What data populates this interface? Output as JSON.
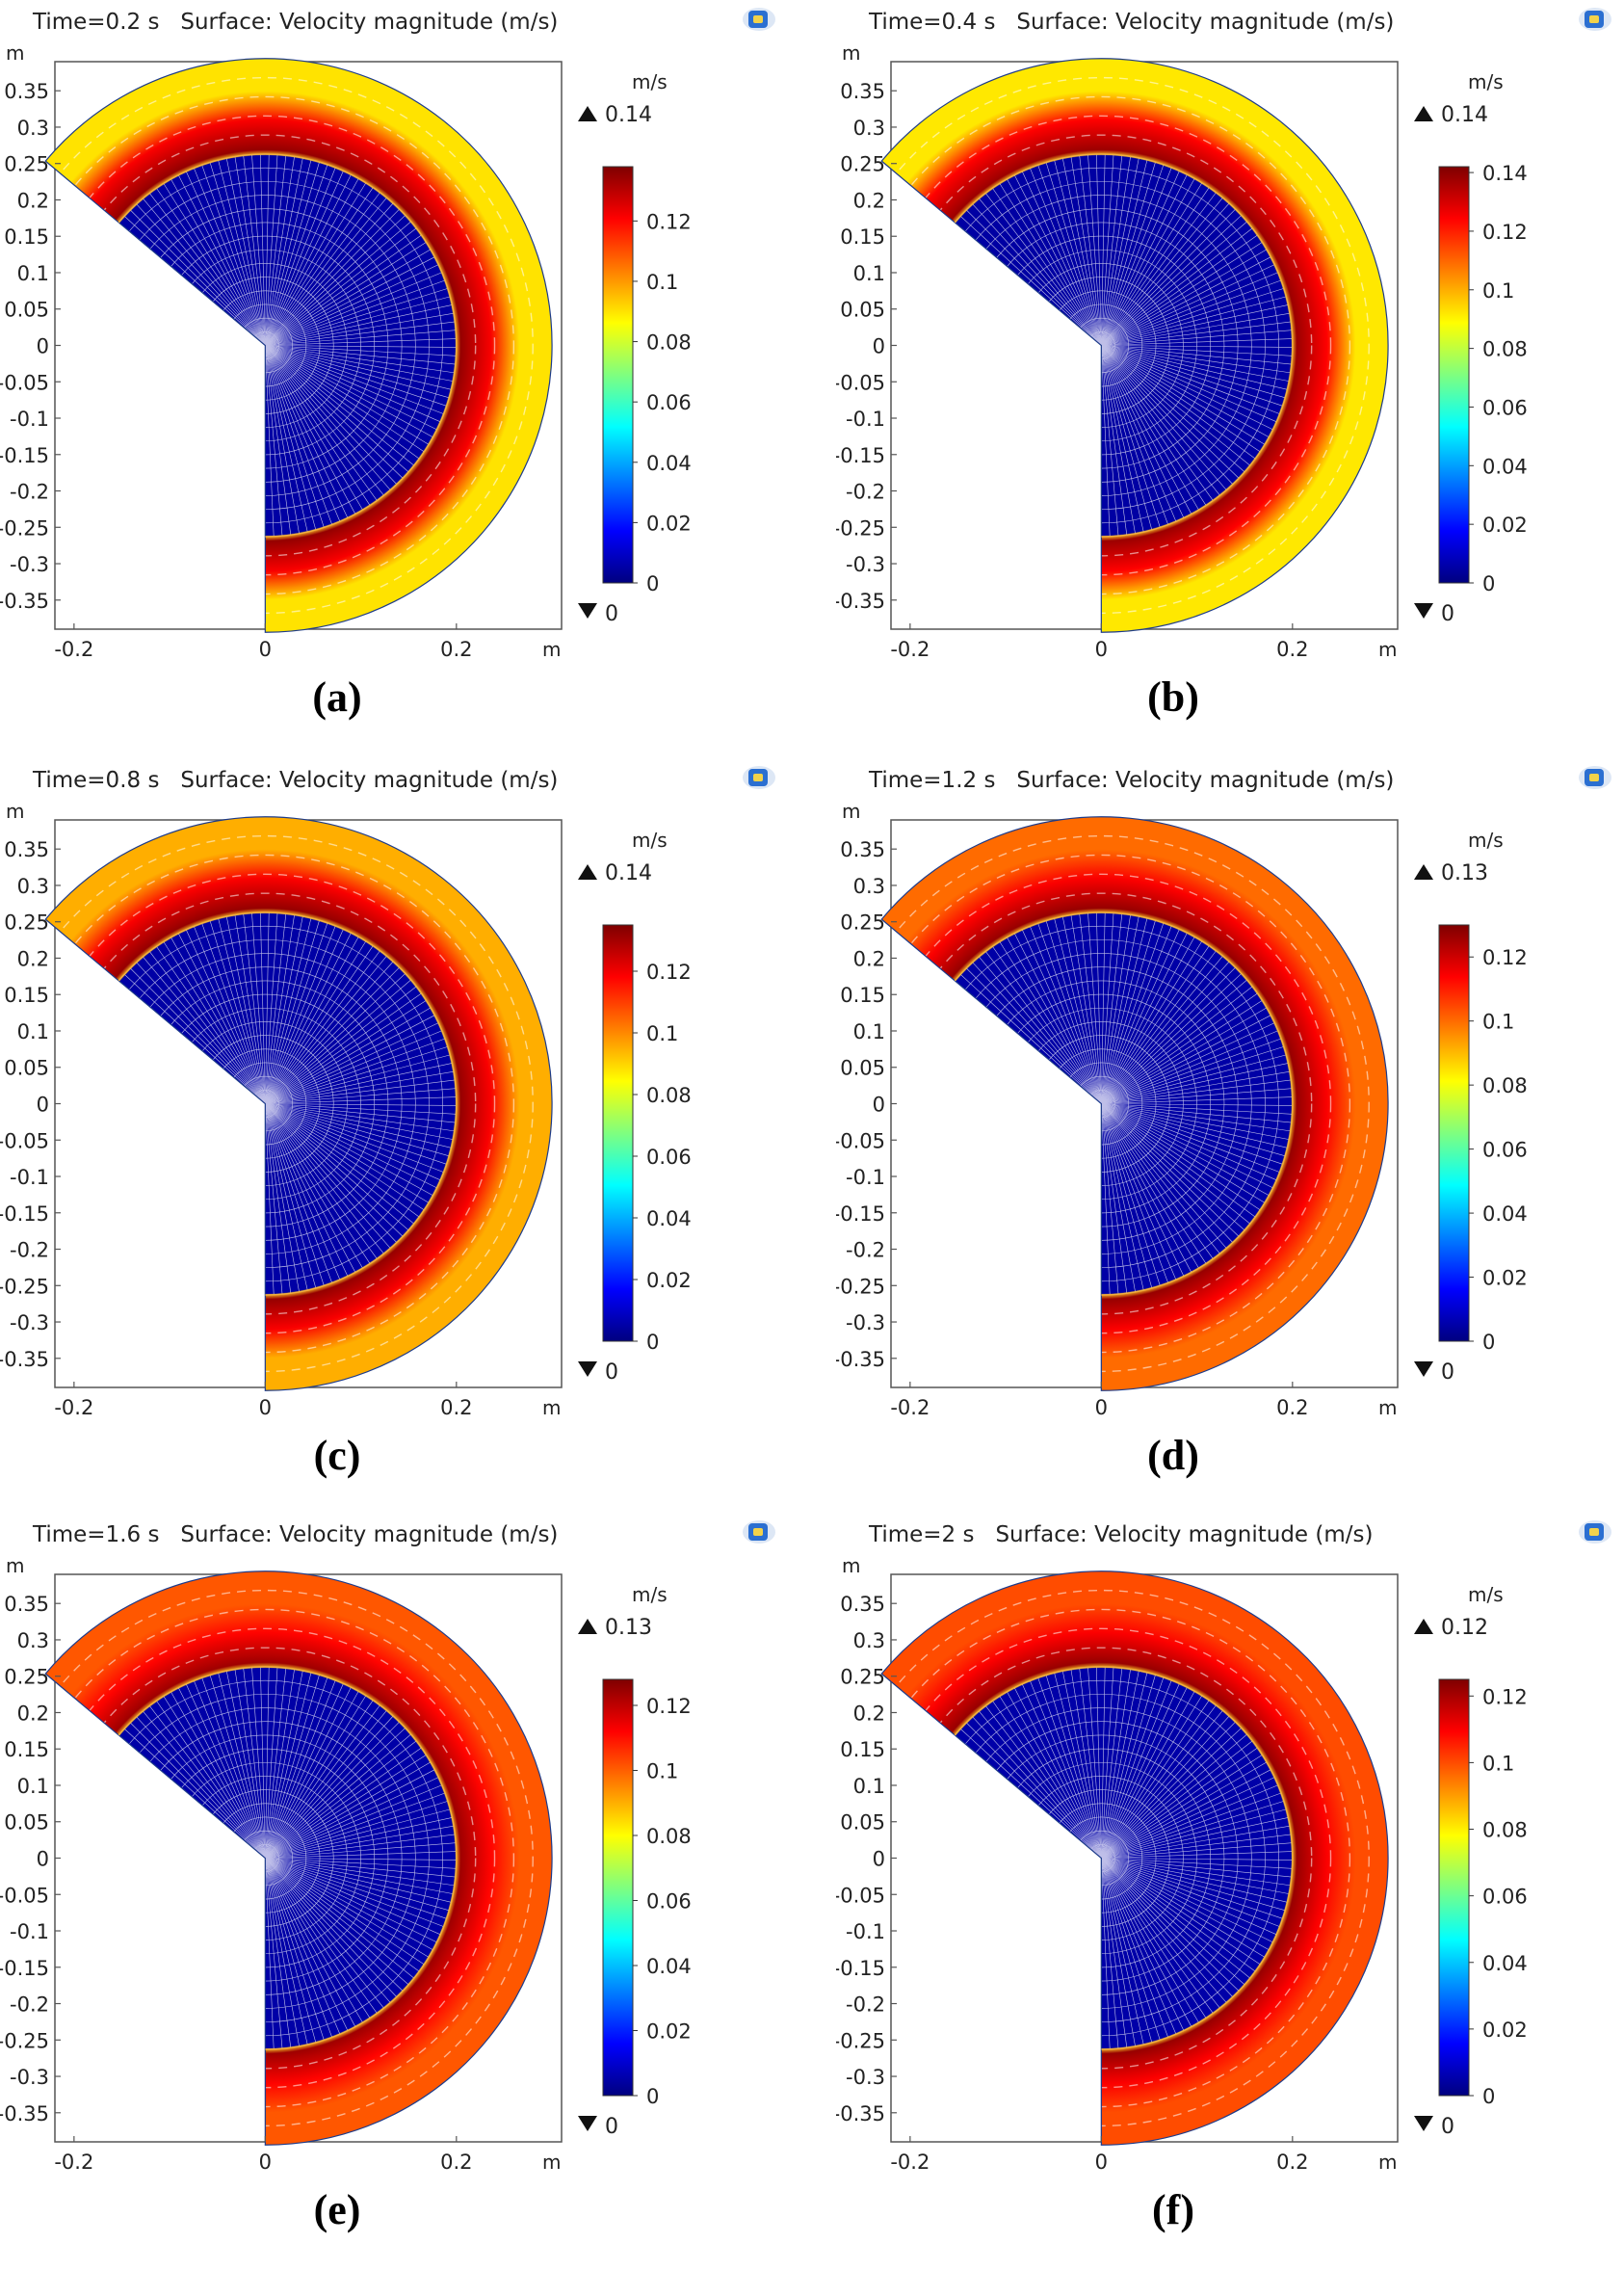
{
  "chart_data": [
    {
      "type": "heatmap",
      "id": "a",
      "time_label": "Time=0.2 s",
      "title": "Surface: Velocity magnitude (m/s)",
      "caption": "(a)",
      "x_unit": "m",
      "y_unit": "m",
      "xlim": [
        -0.22,
        0.31
      ],
      "ylim": [
        -0.39,
        0.39
      ],
      "x_ticks": [
        "-0.2",
        "0",
        "0.2"
      ],
      "y_ticks": [
        "0.35",
        "0.3",
        "0.25",
        "0.2",
        "0.15",
        "0.1",
        "0.05",
        "0",
        "-0.05",
        "-0.1",
        "-0.15",
        "-0.2",
        "-0.25",
        "-0.3",
        "-0.35"
      ],
      "colorbar": {
        "unit": "m/s",
        "max_label": "0.14",
        "min_label": "0",
        "range": [
          0,
          0.138
        ],
        "ticks": [
          "0.12",
          "0.1",
          "0.08",
          "0.06",
          "0.04",
          "0.02",
          "0"
        ]
      },
      "geometry": {
        "inner_radius": 0.2,
        "outer_radius": 0.3,
        "sector_start_deg": -90,
        "sector_end_deg": 140
      },
      "field": {
        "inner_region_value": 0.005,
        "ring_peak_value": 0.135,
        "outer_region_value": 0.09
      }
    },
    {
      "type": "heatmap",
      "id": "b",
      "time_label": "Time=0.4 s",
      "title": "Surface: Velocity magnitude (m/s)",
      "caption": "(b)",
      "x_unit": "m",
      "y_unit": "m",
      "xlim": [
        -0.22,
        0.31
      ],
      "ylim": [
        -0.39,
        0.39
      ],
      "x_ticks": [
        "-0.2",
        "0",
        "0.2"
      ],
      "y_ticks": [
        "0.35",
        "0.3",
        "0.25",
        "0.2",
        "0.15",
        "0.1",
        "0.05",
        "0",
        "-0.05",
        "-0.1",
        "-0.15",
        "-0.2",
        "-0.25",
        "-0.3",
        "-0.35"
      ],
      "colorbar": {
        "unit": "m/s",
        "max_label": "0.14",
        "min_label": "0",
        "range": [
          0,
          0.142
        ],
        "ticks": [
          "0.14",
          "0.12",
          "0.1",
          "0.08",
          "0.06",
          "0.04",
          "0.02",
          "0"
        ]
      },
      "geometry": {
        "inner_radius": 0.2,
        "outer_radius": 0.3,
        "sector_start_deg": -90,
        "sector_end_deg": 140
      },
      "field": {
        "inner_region_value": 0.005,
        "ring_peak_value": 0.138,
        "outer_region_value": 0.092
      }
    },
    {
      "type": "heatmap",
      "id": "c",
      "time_label": "Time=0.8 s",
      "title": "Surface: Velocity magnitude (m/s)",
      "caption": "(c)",
      "x_unit": "m",
      "y_unit": "m",
      "xlim": [
        -0.22,
        0.31
      ],
      "ylim": [
        -0.39,
        0.39
      ],
      "x_ticks": [
        "-0.2",
        "0",
        "0.2"
      ],
      "y_ticks": [
        "0.35",
        "0.3",
        "0.25",
        "0.2",
        "0.15",
        "0.1",
        "0.05",
        "0",
        "-0.05",
        "-0.1",
        "-0.15",
        "-0.2",
        "-0.25",
        "-0.3",
        "-0.35"
      ],
      "colorbar": {
        "unit": "m/s",
        "max_label": "0.14",
        "min_label": "0",
        "range": [
          0,
          0.135
        ],
        "ticks": [
          "0.12",
          "0.1",
          "0.08",
          "0.06",
          "0.04",
          "0.02",
          "0"
        ]
      },
      "geometry": {
        "inner_radius": 0.2,
        "outer_radius": 0.3,
        "sector_start_deg": -90,
        "sector_end_deg": 140
      },
      "field": {
        "inner_region_value": 0.005,
        "ring_peak_value": 0.132,
        "outer_region_value": 0.095
      }
    },
    {
      "type": "heatmap",
      "id": "d",
      "time_label": "Time=1.2 s",
      "title": "Surface: Velocity magnitude (m/s)",
      "caption": "(d)",
      "x_unit": "m",
      "y_unit": "m",
      "xlim": [
        -0.22,
        0.31
      ],
      "ylim": [
        -0.39,
        0.39
      ],
      "x_ticks": [
        "-0.2",
        "0",
        "0.2"
      ],
      "y_ticks": [
        "0.35",
        "0.3",
        "0.25",
        "0.2",
        "0.15",
        "0.1",
        "0.05",
        "0",
        "-0.05",
        "-0.1",
        "-0.15",
        "-0.2",
        "-0.25",
        "-0.3",
        "-0.35"
      ],
      "colorbar": {
        "unit": "m/s",
        "max_label": "0.13",
        "min_label": "0",
        "range": [
          0,
          0.13
        ],
        "ticks": [
          "0.12",
          "0.1",
          "0.08",
          "0.06",
          "0.04",
          "0.02",
          "0"
        ]
      },
      "geometry": {
        "inner_radius": 0.2,
        "outer_radius": 0.3,
        "sector_start_deg": -90,
        "sector_end_deg": 140
      },
      "field": {
        "inner_region_value": 0.005,
        "ring_peak_value": 0.127,
        "outer_region_value": 0.1
      }
    },
    {
      "type": "heatmap",
      "id": "e",
      "time_label": "Time=1.6 s",
      "title": "Surface: Velocity magnitude (m/s)",
      "caption": "(e)",
      "x_unit": "m",
      "y_unit": "m",
      "xlim": [
        -0.22,
        0.31
      ],
      "ylim": [
        -0.39,
        0.39
      ],
      "x_ticks": [
        "-0.2",
        "0",
        "0.2"
      ],
      "y_ticks": [
        "0.35",
        "0.3",
        "0.25",
        "0.2",
        "0.15",
        "0.1",
        "0.05",
        "0",
        "-0.05",
        "-0.1",
        "-0.15",
        "-0.2",
        "-0.25",
        "-0.3",
        "-0.35"
      ],
      "colorbar": {
        "unit": "m/s",
        "max_label": "0.13",
        "min_label": "0",
        "range": [
          0,
          0.128
        ],
        "ticks": [
          "0.12",
          "0.1",
          "0.08",
          "0.06",
          "0.04",
          "0.02",
          "0"
        ]
      },
      "geometry": {
        "inner_radius": 0.2,
        "outer_radius": 0.3,
        "sector_start_deg": -90,
        "sector_end_deg": 140
      },
      "field": {
        "inner_region_value": 0.005,
        "ring_peak_value": 0.124,
        "outer_region_value": 0.101
      }
    },
    {
      "type": "heatmap",
      "id": "f",
      "time_label": "Time=2 s",
      "title": "Surface: Velocity magnitude (m/s)",
      "caption": "(f)",
      "x_unit": "m",
      "y_unit": "m",
      "xlim": [
        -0.22,
        0.31
      ],
      "ylim": [
        -0.39,
        0.39
      ],
      "x_ticks": [
        "-0.2",
        "0",
        "0.2"
      ],
      "y_ticks": [
        "0.35",
        "0.3",
        "0.25",
        "0.2",
        "0.15",
        "0.1",
        "0.05",
        "0",
        "-0.05",
        "-0.1",
        "-0.15",
        "-0.2",
        "-0.25",
        "-0.3",
        "-0.35"
      ],
      "colorbar": {
        "unit": "m/s",
        "max_label": "0.12",
        "min_label": "0",
        "range": [
          0,
          0.125
        ],
        "ticks": [
          "0.12",
          "0.1",
          "0.08",
          "0.06",
          "0.04",
          "0.02",
          "0"
        ]
      },
      "geometry": {
        "inner_radius": 0.2,
        "outer_radius": 0.3,
        "sector_start_deg": -90,
        "sector_end_deg": 140
      },
      "field": {
        "inner_region_value": 0.005,
        "ring_peak_value": 0.122,
        "outer_region_value": 0.1
      }
    }
  ],
  "colors": {
    "mesh_line": "#ffffff",
    "boundary": "#1d3b8a",
    "jet_stops": [
      "#00007f",
      "#0000ff",
      "#007fff",
      "#00ffff",
      "#7fff7f",
      "#ffff00",
      "#ff7f00",
      "#ff0000",
      "#7f0000"
    ]
  }
}
